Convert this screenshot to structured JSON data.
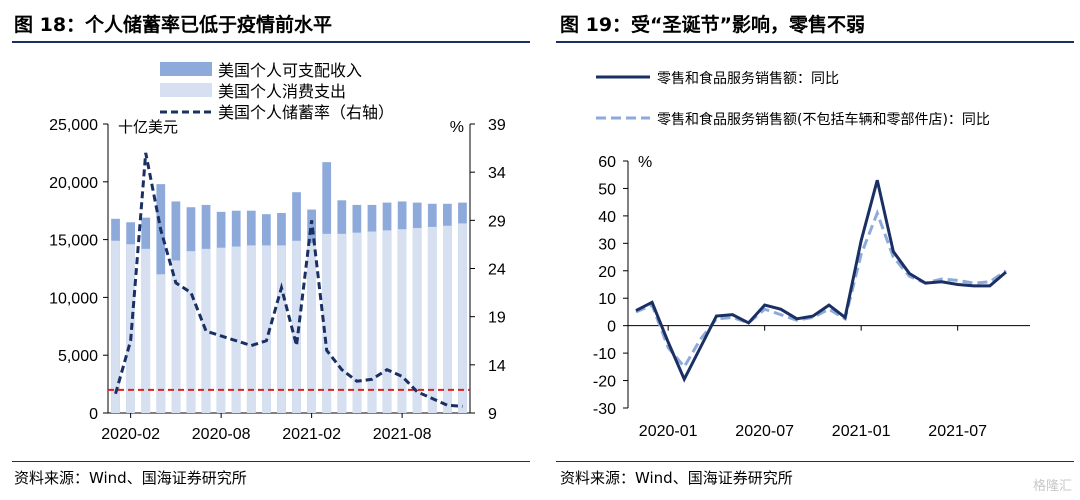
{
  "left_panel": {
    "title": "图 18：个人储蓄率已低于疫情前水平",
    "source": "资料来源：Wind、国海证券研究所"
  },
  "right_panel": {
    "title": "图 19：受“圣诞节”影响，零售不弱",
    "source": "资料来源：Wind、国海证券研究所"
  },
  "watermark": "格隆汇",
  "colors": {
    "income_bar": "#8eaadb",
    "consumption_bar": "#d6e0f1",
    "saving_line": "#1a2f63",
    "ref_line": "#e02020",
    "retail_line": "#1a2f63",
    "retail_ex_auto_line": "#8eaadb"
  },
  "chart_data": [
    {
      "type": "bar",
      "unit_left": "十亿美元",
      "unit_right": "%",
      "y_left_ticks": [
        "25,000",
        "20,000",
        "15,000",
        "10,000",
        "5,000",
        "0"
      ],
      "y_right_ticks": [
        "39",
        "34",
        "29",
        "24",
        "19",
        "14",
        "9"
      ],
      "ylim_left": [
        0,
        25000
      ],
      "ylim_right": [
        9,
        39
      ],
      "x_ticks": [
        "2020-02",
        "2020-08",
        "2021-02",
        "2021-08"
      ],
      "categories": [
        "2020-01",
        "2020-02",
        "2020-03",
        "2020-04",
        "2020-05",
        "2020-06",
        "2020-07",
        "2020-08",
        "2020-09",
        "2020-10",
        "2020-11",
        "2020-12",
        "2021-01",
        "2021-02",
        "2021-03",
        "2021-04",
        "2021-05",
        "2021-06",
        "2021-07",
        "2021-08",
        "2021-09",
        "2021-10",
        "2021-11",
        "2021-12"
      ],
      "series": [
        {
          "name": "美国个人可支配收入",
          "kind": "bar",
          "values": [
            16800,
            16500,
            16900,
            19800,
            18300,
            17800,
            18000,
            17400,
            17500,
            17500,
            17200,
            17300,
            19100,
            17600,
            21700,
            18400,
            18000,
            18000,
            18200,
            18300,
            18200,
            18100,
            18100,
            18200
          ]
        },
        {
          "name": "美国个人消费支出",
          "kind": "bar",
          "values": [
            14900,
            14600,
            14200,
            12000,
            13200,
            14000,
            14200,
            14300,
            14400,
            14500,
            14500,
            14500,
            14900,
            14700,
            15500,
            15500,
            15600,
            15700,
            15800,
            15900,
            16000,
            16100,
            16200,
            16400
          ]
        },
        {
          "name": "美国个人储蓄率（右轴）",
          "kind": "line",
          "axis": "right",
          "values": [
            11,
            16.5,
            36,
            28,
            22.5,
            21.5,
            17.5,
            17,
            16.5,
            16,
            16.5,
            22,
            16,
            29,
            15.5,
            13.5,
            12.3,
            12.5,
            13.5,
            12.8,
            11.2,
            10.5,
            9.8,
            9.7
          ]
        }
      ],
      "reference_line_left": 2000
    },
    {
      "type": "line",
      "unit": "%",
      "y_ticks": [
        "60",
        "50",
        "40",
        "30",
        "20",
        "10",
        "0",
        "-10",
        "-20",
        "-30"
      ],
      "ylim": [
        -30,
        60
      ],
      "x_ticks": [
        "2020-01",
        "2020-07",
        "2021-01",
        "2021-07"
      ],
      "categories": [
        "2019-11",
        "2019-12",
        "2020-01",
        "2020-02",
        "2020-03",
        "2020-04",
        "2020-05",
        "2020-06",
        "2020-07",
        "2020-08",
        "2020-09",
        "2020-10",
        "2020-11",
        "2020-12",
        "2021-01",
        "2021-02",
        "2021-03",
        "2021-04",
        "2021-05",
        "2021-06",
        "2021-07",
        "2021-08",
        "2021-09",
        "2021-10",
        "2021-11"
      ],
      "series": [
        {
          "name": "零售和食品服务销售额：同比",
          "values": [
            5.5,
            8.5,
            -6,
            -19.5,
            -8,
            3.5,
            4,
            1,
            7.5,
            6,
            2.5,
            3.5,
            7.5,
            3,
            31,
            53,
            27,
            19,
            15.5,
            16,
            15,
            14.5,
            14.5,
            19.5,
            null
          ]
        },
        {
          "name": "零售和食品服务销售额(不包括车辆和零部件店)：同比",
          "values": [
            5,
            7.5,
            -8,
            -15,
            -5,
            2.5,
            3,
            1,
            6,
            4,
            2,
            3,
            6,
            2.5,
            26,
            41,
            25,
            18,
            15.5,
            17,
            16.5,
            15.5,
            16,
            20,
            null
          ]
        }
      ]
    }
  ]
}
